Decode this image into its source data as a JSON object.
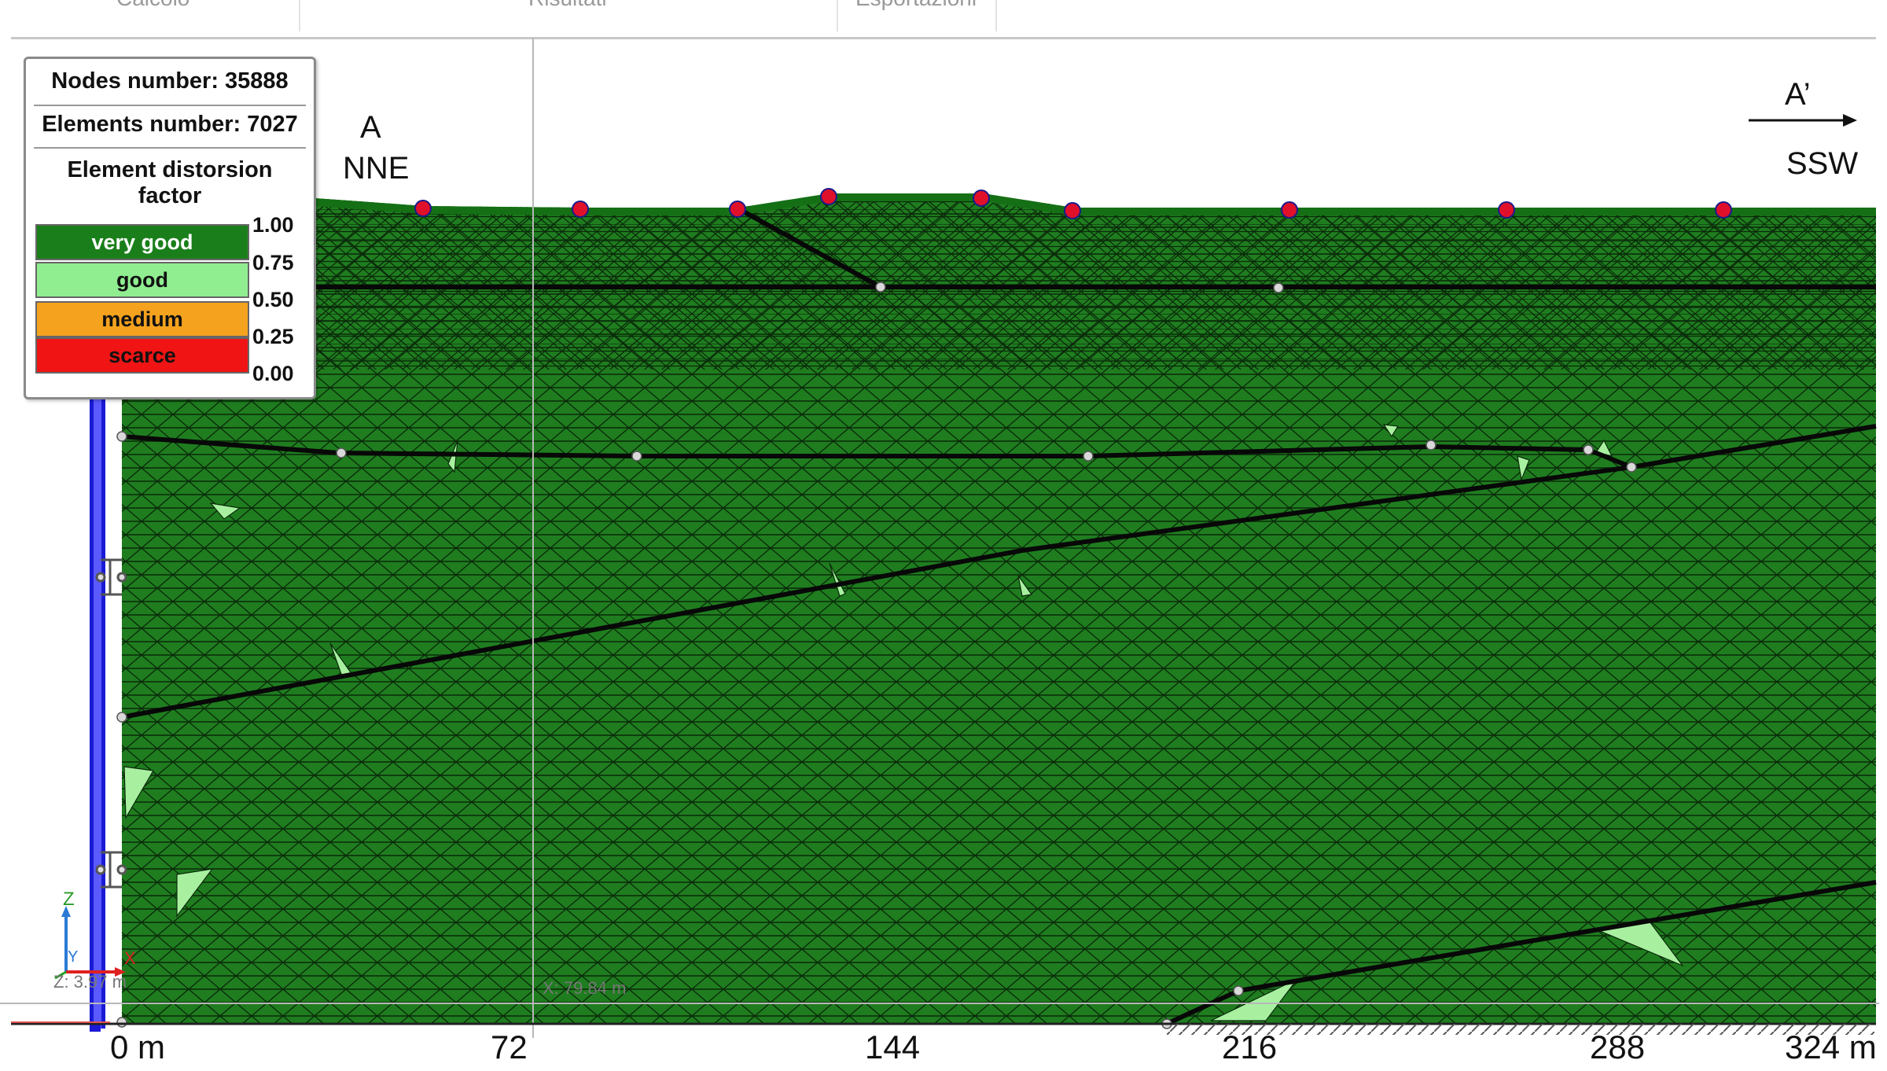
{
  "toolbar": {
    "tabs": [
      {
        "label": "Calcolo"
      },
      {
        "label": "Risultati"
      },
      {
        "label": "Esportazioni"
      }
    ]
  },
  "legend": {
    "nodes_label": "Nodes number: 35888",
    "elements_label": "Elements number: 7027",
    "title": "Element distorsion factor",
    "categories": [
      {
        "label": "very good",
        "color": "#1a7f1a",
        "text_color": "#ffffff"
      },
      {
        "label": "good",
        "color": "#90ee90",
        "text_color": "#111111"
      },
      {
        "label": "medium",
        "color": "#f5a21e",
        "text_color": "#111111"
      },
      {
        "label": "scarce",
        "color": "#f01414",
        "text_color": "#111111"
      }
    ],
    "ticks": [
      "1.00",
      "0.75",
      "0.50",
      "0.25",
      "0.00"
    ]
  },
  "section": {
    "start_letter": "A",
    "start_direction": "NNE",
    "end_letter": "A’",
    "end_direction": "SSW",
    "mesh_color": "#1f7d1f",
    "boundary_color": "#1a1ad6",
    "surface_point_color": "#e0102a"
  },
  "axis": {
    "ticks": [
      "0 m",
      "72",
      "144",
      "216",
      "288",
      "324 m"
    ],
    "coordinate_readout": "X: 79.84 m",
    "z_readout": "Z: 3.97 m",
    "axis_labels": {
      "z": "Z",
      "y": "Y",
      "x": "X"
    }
  }
}
